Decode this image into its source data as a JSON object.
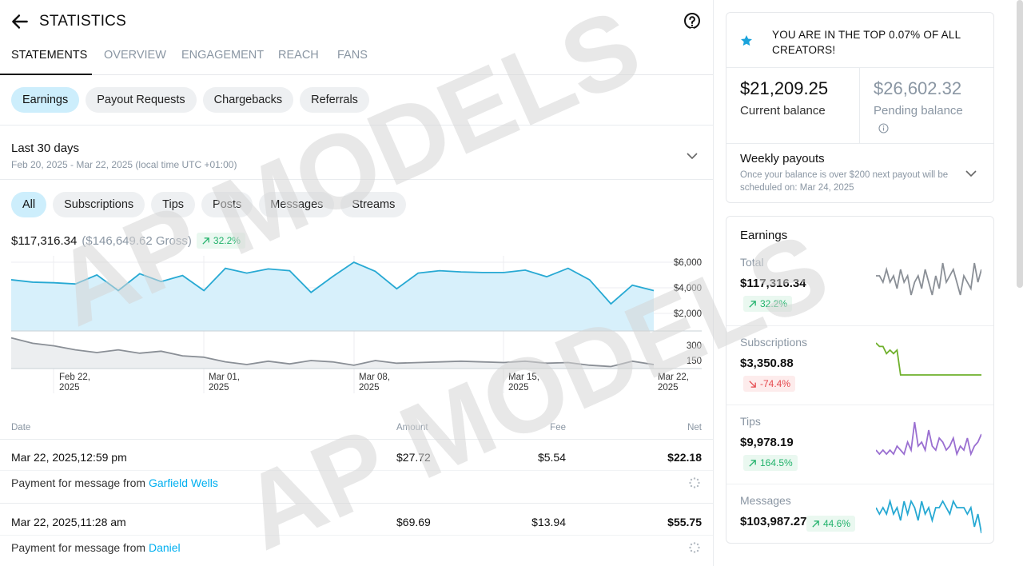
{
  "header": {
    "title": "STATISTICS",
    "back_icon": "arrow-left-icon",
    "help_icon": "question-circle-icon"
  },
  "tabs": [
    {
      "label": "STATEMENTS",
      "active": true
    },
    {
      "label": "OVERVIEW"
    },
    {
      "label": "ENGAGEMENT"
    },
    {
      "label": "REACH"
    },
    {
      "label": "FANS"
    }
  ],
  "statement_types": [
    {
      "label": "Earnings",
      "active": true
    },
    {
      "label": "Payout Requests"
    },
    {
      "label": "Chargebacks"
    },
    {
      "label": "Referrals"
    }
  ],
  "period": {
    "label": "Last 30 days",
    "range": "Feb 20, 2025 - Mar 22, 2025 (local time UTC +01:00)"
  },
  "filters": [
    {
      "label": "All",
      "active": true
    },
    {
      "label": "Subscriptions"
    },
    {
      "label": "Tips"
    },
    {
      "label": "Posts"
    },
    {
      "label": "Messages"
    },
    {
      "label": "Streams"
    }
  ],
  "summary": {
    "net": "$117,316.34",
    "gross": "($146,649.62 Gross)",
    "change": "32.2%"
  },
  "chart_data": [
    {
      "type": "area",
      "x": [
        "Feb 20",
        "Feb 21",
        "Feb 22",
        "Feb 23",
        "Feb 24",
        "Feb 25",
        "Feb 26",
        "Feb 27",
        "Feb 28",
        "Mar 01",
        "Mar 02",
        "Mar 03",
        "Mar 04",
        "Mar 05",
        "Mar 06",
        "Mar 07",
        "Mar 08",
        "Mar 09",
        "Mar 10",
        "Mar 11",
        "Mar 12",
        "Mar 13",
        "Mar 14",
        "Mar 15",
        "Mar 16",
        "Mar 17",
        "Mar 18",
        "Mar 19",
        "Mar 20",
        "Mar 21",
        "Mar 22"
      ],
      "series": [
        {
          "values": [
            4250,
            4050,
            4000,
            3900,
            4650,
            3350,
            4750,
            4100,
            4600,
            3350,
            5200,
            4800,
            5150,
            5000,
            3200,
            4500,
            5700,
            4950,
            3500,
            4800,
            5000,
            4900,
            4850,
            4850,
            5050,
            4500,
            5200,
            4250,
            2250,
            3800,
            3350
          ]
        }
      ],
      "yticks": [
        "$6,000",
        "$4,000",
        "$2,000"
      ],
      "xticks": [
        [
          "Feb 22,",
          "2025"
        ],
        [
          "Mar 01,",
          "2025"
        ],
        [
          "Mar 08,",
          "2025"
        ],
        [
          "Mar 15,",
          "2025"
        ],
        [
          "Mar 22,",
          "2025"
        ]
      ],
      "ylim": [
        0,
        6500
      ],
      "color": "#27a9d3",
      "fill": "#d7f0fb"
    },
    {
      "type": "area",
      "series": [
        {
          "values": [
            380,
            300,
            260,
            200,
            160,
            200,
            150,
            180,
            110,
            90,
            20,
            -20,
            30,
            -10,
            40,
            20,
            -30,
            40,
            0,
            10,
            20,
            30,
            20,
            10,
            30,
            0,
            10,
            -30,
            -50,
            30,
            -20
          ]
        }
      ],
      "yticks": [
        "300",
        "150"
      ],
      "ylim": [
        -80,
        400
      ],
      "color": "#8a8f96",
      "fill": "#eceef0"
    }
  ],
  "table": {
    "headers": {
      "date": "Date",
      "amount": "Amount",
      "fee": "Fee",
      "net": "Net"
    },
    "rows": [
      {
        "date": "Mar 22, 2025,12:59 pm",
        "amount": "$27.72",
        "fee": "$5.54",
        "net": "$22.18",
        "desc": "Payment for message from ",
        "user": "Garfield Wells"
      },
      {
        "date": "Mar 22, 2025,11:28 am",
        "amount": "$69.69",
        "fee": "$13.94",
        "net": "$55.75",
        "desc": "Payment for message from ",
        "user": "Daniel"
      }
    ]
  },
  "sidebar": {
    "top_message": "YOU ARE IN THE TOP 0.07% OF ALL CREATORS!",
    "current_balance": {
      "value": "$21,209.25",
      "label": "Current balance"
    },
    "pending_balance": {
      "value": "$26,602.32",
      "label": "Pending balance"
    },
    "weekly": {
      "title": "Weekly payouts",
      "text": "Once your balance is over $200 next payout will be scheduled on: Mar 24, 2025"
    },
    "earnings": {
      "title": "Earnings",
      "metrics": [
        {
          "label": "Total",
          "value": "$117,316.34",
          "change": "32.2%",
          "direction": "up",
          "color": "#8a8f96",
          "spark": [
            6,
            6,
            5,
            7,
            5,
            6,
            4,
            7,
            5,
            6,
            3,
            5,
            6,
            4,
            7,
            5,
            3,
            6,
            4,
            8,
            5,
            6,
            7,
            5,
            3,
            6,
            5,
            4,
            8,
            5,
            7
          ]
        },
        {
          "label": "Subscriptions",
          "value": "$3,350.88",
          "change": "-74.4%",
          "direction": "down",
          "color": "#6fb02c",
          "spark": [
            9,
            8,
            8,
            6,
            7,
            6,
            7,
            0,
            0,
            0,
            0,
            0,
            0,
            0,
            0,
            0,
            0,
            0,
            0,
            0,
            0,
            0,
            0,
            0,
            0,
            0,
            0,
            0,
            0,
            0,
            0
          ]
        },
        {
          "label": "Tips",
          "value": "$9,978.19",
          "change": "164.5%",
          "direction": "up",
          "color": "#9a6fd1",
          "spark": [
            2,
            1,
            2,
            1,
            2,
            1,
            3,
            2,
            1,
            4,
            2,
            9,
            3,
            4,
            2,
            7,
            3,
            2,
            5,
            4,
            2,
            3,
            5,
            1,
            3,
            2,
            5,
            1,
            3,
            4,
            6
          ]
        },
        {
          "label": "Messages",
          "value": "$103,987.27",
          "change": "44.6%",
          "direction": "up",
          "color": "#27a9d3",
          "spark": [
            6,
            5,
            6,
            5,
            7,
            5,
            6,
            4,
            7,
            5,
            7,
            6,
            4,
            7,
            5,
            6,
            4,
            6,
            6,
            7,
            6,
            5,
            7,
            6,
            6,
            6,
            5,
            6,
            3,
            5,
            2
          ]
        }
      ]
    }
  },
  "watermark": "AP MODELS"
}
